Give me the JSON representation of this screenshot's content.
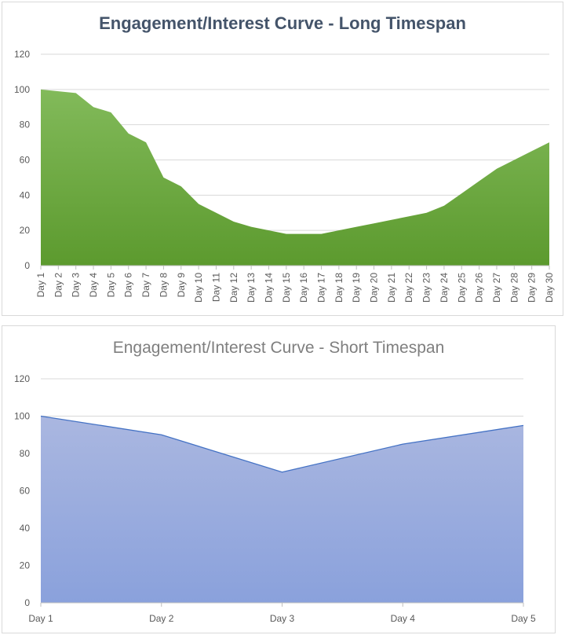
{
  "chart_data": [
    {
      "type": "area",
      "title": "Engagement/Interest Curve - Long Timespan",
      "xlabel": "",
      "ylabel": "",
      "ylim": [
        0,
        120
      ],
      "yticks": [
        0,
        20,
        40,
        60,
        80,
        100,
        120
      ],
      "grid": true,
      "fill_color": "#70ad47",
      "categories": [
        "Day 1",
        "Day 2",
        "Day 3",
        "Day 4",
        "Day 5",
        "Day 6",
        "Day 7",
        "Day 8",
        "Day 9",
        "Day 10",
        "Day 11",
        "Day 12",
        "Day 13",
        "Day 14",
        "Day 15",
        "Day 16",
        "Day 17",
        "Day 18",
        "Day 19",
        "Day 20",
        "Day 21",
        "Day 22",
        "Day 23",
        "Day 24",
        "Day 25",
        "Day 26",
        "Day 27",
        "Day 28",
        "Day 29",
        "Day 30"
      ],
      "values": [
        100,
        99,
        98,
        90,
        87,
        75,
        70,
        50,
        45,
        35,
        30,
        25,
        22,
        20,
        18,
        18,
        18,
        20,
        22,
        24,
        26,
        28,
        30,
        34,
        41,
        48,
        55,
        60,
        65,
        70
      ]
    },
    {
      "type": "area",
      "title": "Engagement/Interest Curve - Short Timespan",
      "xlabel": "",
      "ylabel": "",
      "ylim": [
        0,
        120
      ],
      "yticks": [
        0,
        20,
        40,
        60,
        80,
        100,
        120
      ],
      "grid": true,
      "fill_color": "#8faadc",
      "line_color": "#4472c4",
      "categories": [
        "Day 1",
        "Day 2",
        "Day 3",
        "Day 4",
        "Day 5"
      ],
      "values": [
        100,
        90,
        70,
        85,
        95
      ]
    }
  ]
}
